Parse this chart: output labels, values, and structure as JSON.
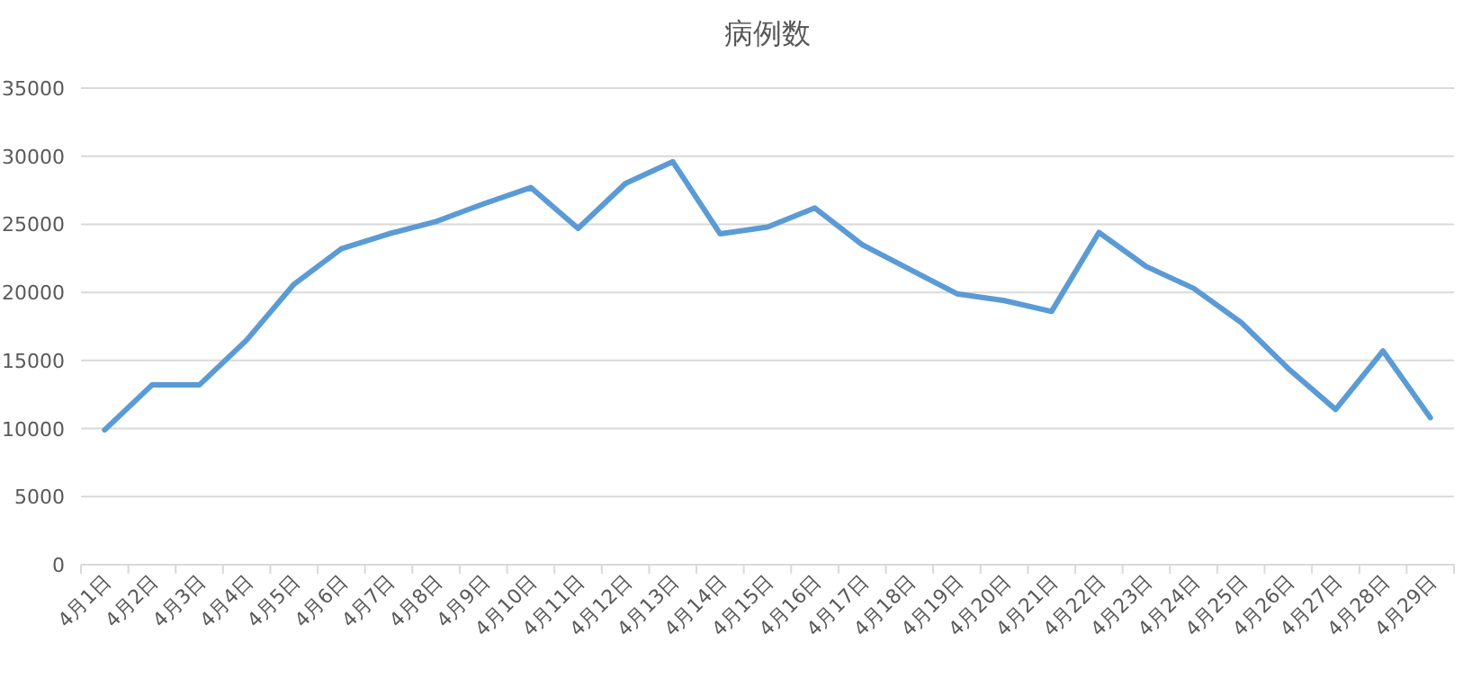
{
  "chart_data": {
    "type": "line",
    "title": "病例数",
    "categories": [
      "4月1日",
      "4月2日",
      "4月3日",
      "4月4日",
      "4月5日",
      "4月6日",
      "4月7日",
      "4月8日",
      "4月9日",
      "4月10日",
      "4月11日",
      "4月12日",
      "4月13日",
      "4月14日",
      "4月15日",
      "4月16日",
      "4月17日",
      "4月18日",
      "4月19日",
      "4月20日",
      "4月21日",
      "4月22日",
      "4月23日",
      "4月24日",
      "4月25日",
      "4月26日",
      "4月27日",
      "4月28日",
      "4月29日"
    ],
    "values": [
      9900,
      13200,
      13200,
      16500,
      20600,
      23200,
      24300,
      25200,
      26500,
      27700,
      24700,
      28000,
      29600,
      24300,
      24800,
      26200,
      23500,
      21700,
      19900,
      19400,
      18600,
      24400,
      21900,
      20300,
      17800,
      14400,
      11400,
      15700,
      10800
    ],
    "color": "#5b9bd5",
    "ylim": [
      0,
      35000
    ],
    "yticks": [
      0,
      5000,
      10000,
      15000,
      20000,
      25000,
      30000,
      35000
    ],
    "grid": "y"
  }
}
